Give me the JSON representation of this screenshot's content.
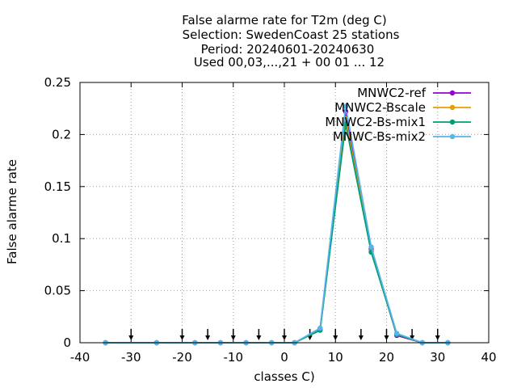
{
  "chart_data": {
    "type": "line",
    "title_lines": [
      "False alarme rate  for T2m (deg C)",
      "Selection: SwedenCoast     25 stations",
      "Period: 20240601-20240630",
      "Used 00,03,...,21 + 00 01 ... 12"
    ],
    "xlabel": "classes C)",
    "ylabel": "False alarme rate",
    "xlim": [
      -40,
      40
    ],
    "ylim": [
      0,
      0.25
    ],
    "xticks": [
      -40,
      -30,
      -20,
      -10,
      0,
      10,
      20,
      30,
      40
    ],
    "xtick_labels": [
      "-40",
      "-30",
      "-20",
      "-10",
      "0",
      "10",
      "20",
      "30",
      "40"
    ],
    "yticks": [
      0,
      0.05,
      0.1,
      0.15,
      0.2,
      0.25
    ],
    "ytick_labels": [
      "0",
      "0.05",
      "0.1",
      "0.15",
      "0.2",
      "0.25"
    ],
    "grid": true,
    "legend_position": "top-right",
    "x": [
      -35,
      -25,
      -17.5,
      -12.5,
      -7.5,
      -2.5,
      2,
      7,
      12,
      17,
      22,
      27,
      32
    ],
    "series": [
      {
        "name": "MNWC2-ref",
        "color": "#9400d3",
        "values": [
          0,
          0,
          0,
          0,
          0,
          0,
          0,
          0.013,
          0.222,
          0.09,
          0.007,
          0,
          0
        ]
      },
      {
        "name": "MNWC2-Bscale",
        "color": "#e69f00",
        "values": [
          0,
          0,
          0,
          0,
          0,
          0,
          0,
          0.012,
          0.215,
          0.088,
          0.008,
          0,
          0
        ]
      },
      {
        "name": "MNWC2-Bs-mix1",
        "color": "#009e73",
        "values": [
          0,
          0,
          0,
          0,
          0,
          0,
          0,
          0.012,
          0.21,
          0.087,
          0.008,
          0,
          0
        ]
      },
      {
        "name": "MNWC-Bs-mix2",
        "color": "#56b4e9",
        "values": [
          0,
          0,
          0,
          0,
          0,
          0,
          0,
          0.014,
          0.227,
          0.092,
          0.009,
          0,
          0
        ]
      }
    ],
    "arrow_x": [
      -30,
      -20,
      -15,
      -10,
      -5,
      0,
      5,
      10,
      15,
      20,
      25,
      30
    ]
  }
}
